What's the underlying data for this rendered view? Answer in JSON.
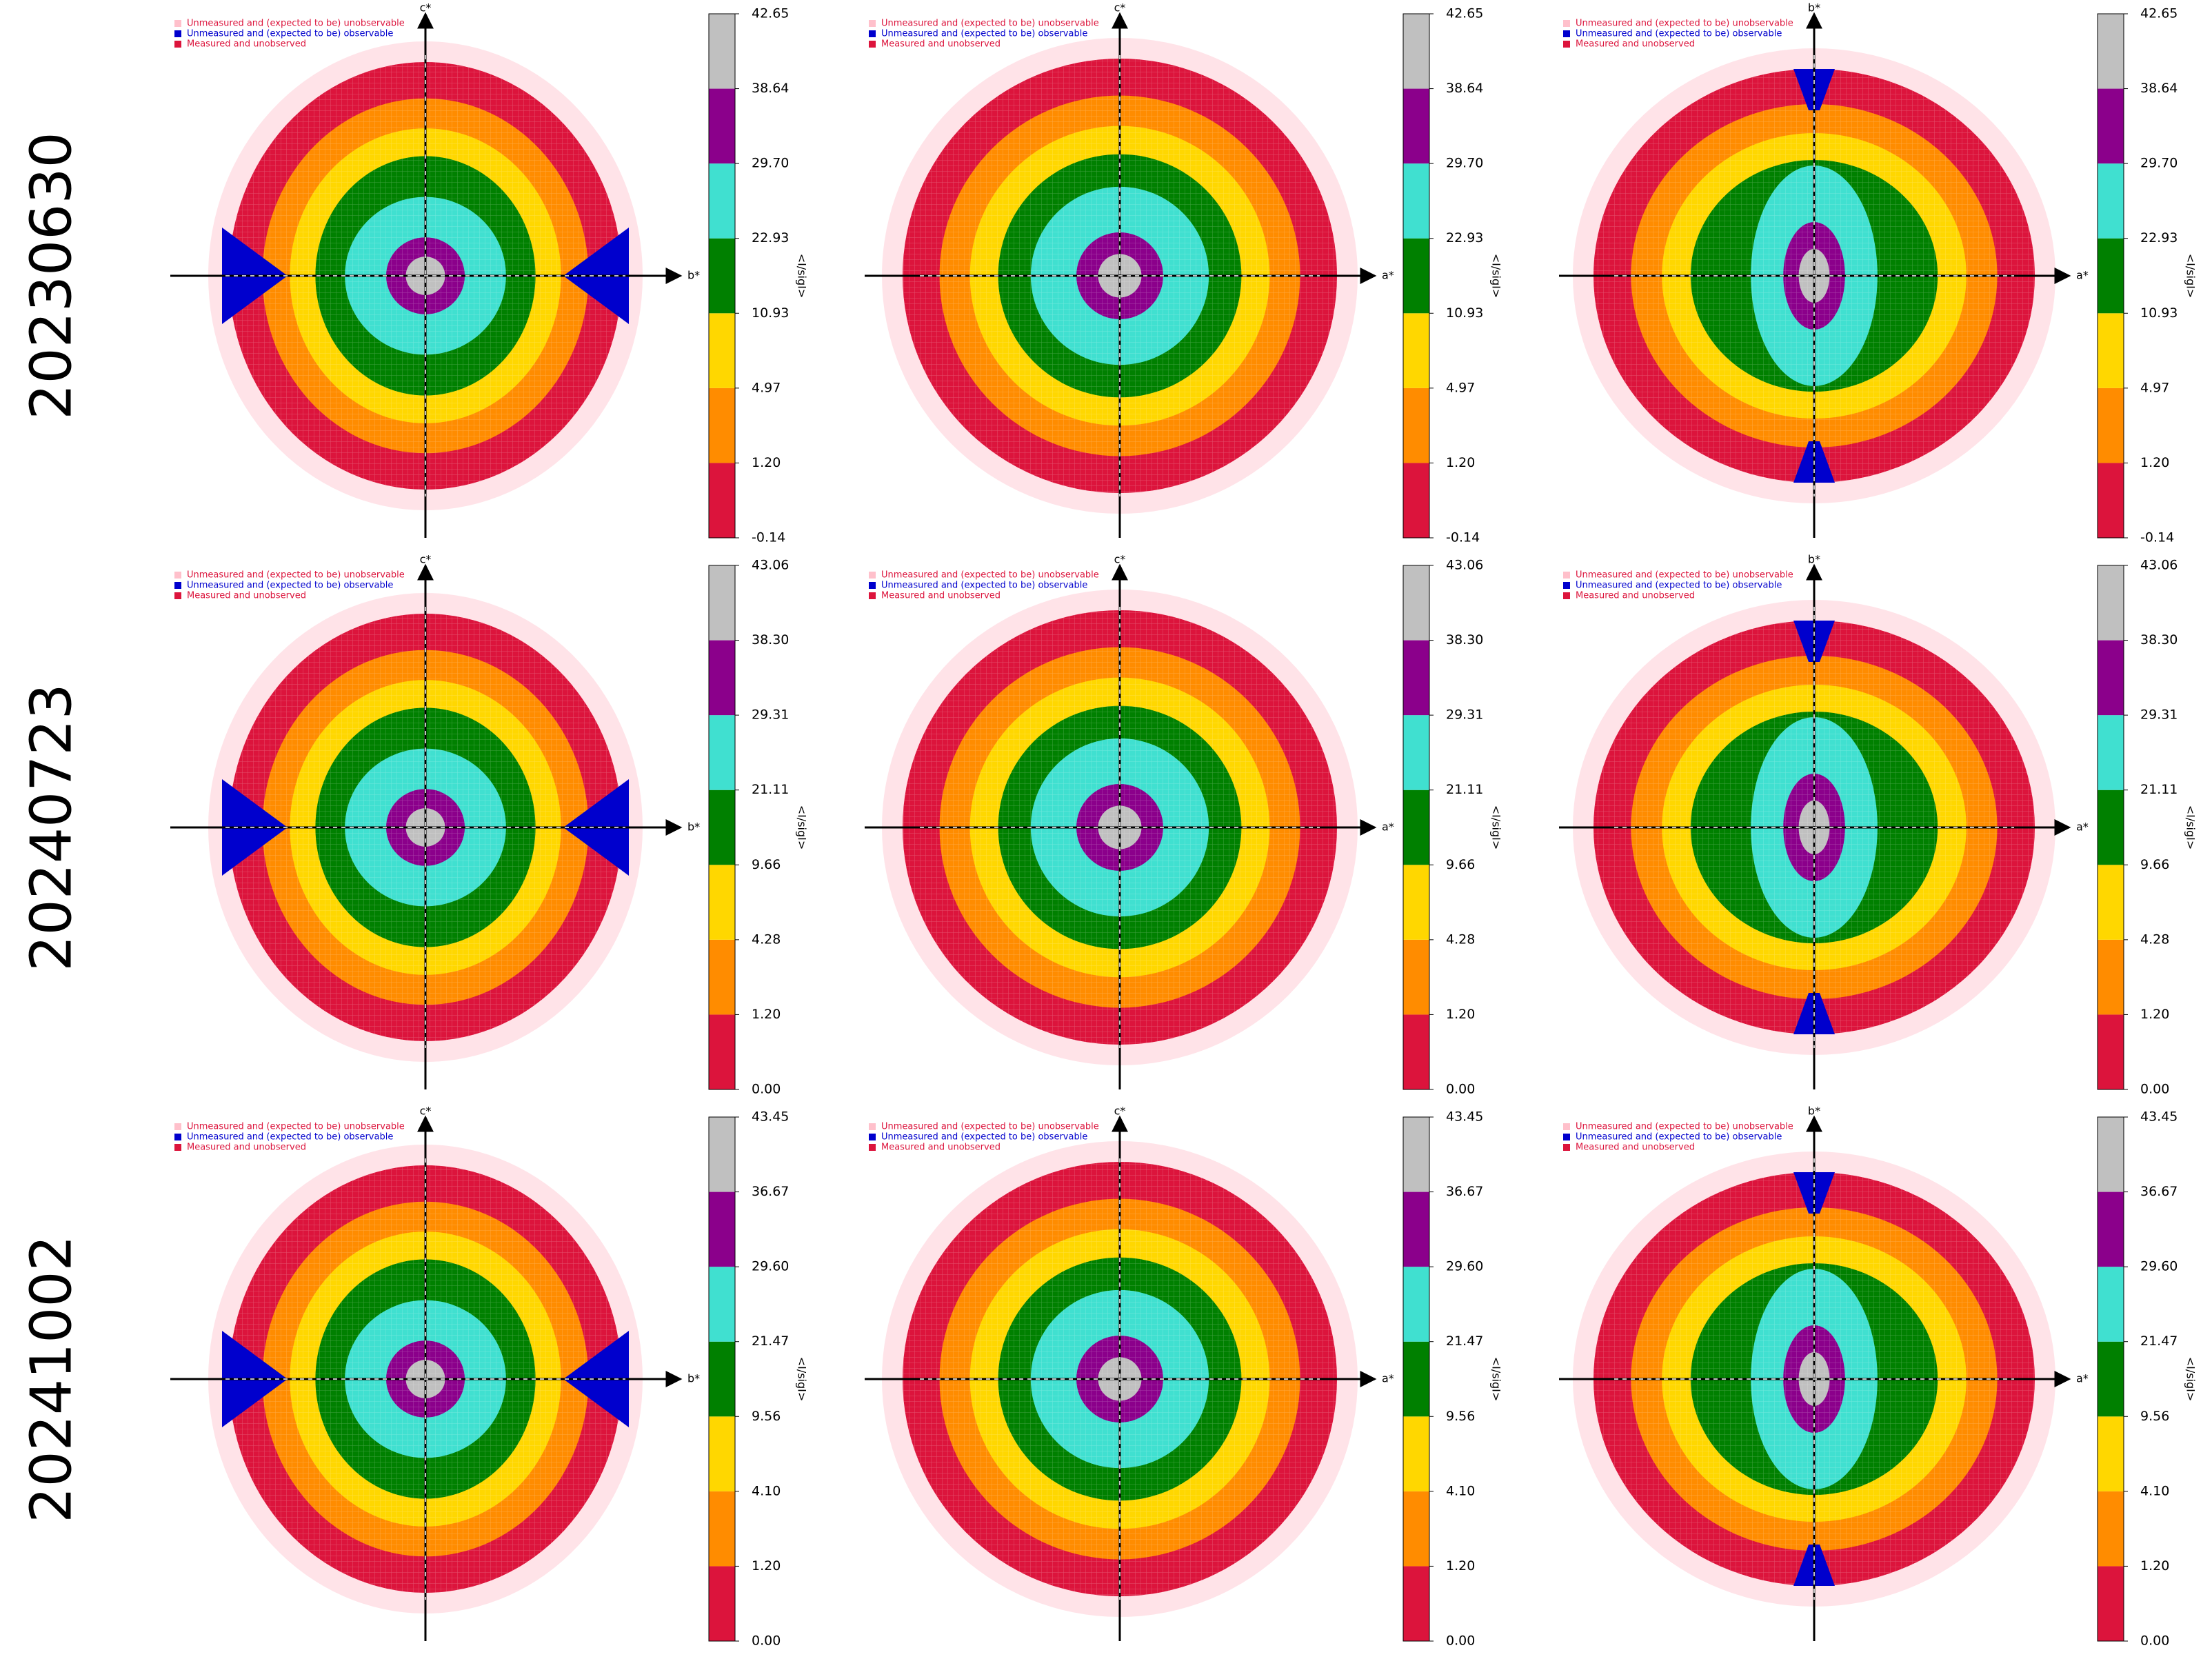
{
  "legend": [
    {
      "label": "Unmeasured and (expected to be) unobservable",
      "color": "#ffc0cb",
      "text_color": "#dc143c"
    },
    {
      "label": "Unmeasured and (expected to be) observable",
      "color": "#0000cd",
      "text_color": "#0000cd"
    },
    {
      "label": "Measured and unobserved",
      "color": "#dc143c",
      "text_color": "#dc143c"
    }
  ],
  "colorbar_label": "<I/sigI>",
  "band_colors": [
    "#dc143c",
    "#ff8c00",
    "#ffd700",
    "#008000",
    "#40e0d0",
    "#8b008b",
    "#c0c0c0"
  ],
  "rows": [
    {
      "label": "20230630",
      "panels": [
        {
          "vertical_axis": "c*",
          "horizontal_axis": "b*",
          "colorbar_ticks": [
            -0.14,
            {
              "value": 1.2,
              "label": "1.20"
            },
            4.97,
            10.93,
            22.93,
            {
              "value": 29.7,
              "label": "29.70"
            },
            38.64,
            42.65
          ]
        },
        {
          "vertical_axis": "c*",
          "horizontal_axis": "a*",
          "colorbar_ticks": [
            -0.14,
            {
              "value": 1.2,
              "label": "1.20"
            },
            4.97,
            10.93,
            22.93,
            {
              "value": 29.7,
              "label": "29.70"
            },
            38.64,
            42.65
          ]
        },
        {
          "vertical_axis": "b*",
          "horizontal_axis": "a*",
          "colorbar_ticks": [
            -0.14,
            {
              "value": 1.2,
              "label": "1.20"
            },
            4.97,
            10.93,
            22.93,
            {
              "value": 29.7,
              "label": "29.70"
            },
            38.64,
            42.65
          ]
        }
      ]
    },
    {
      "label": "20240723",
      "panels": [
        {
          "vertical_axis": "c*",
          "horizontal_axis": "b*",
          "colorbar_ticks": [
            {
              "value": 0,
              "label": "0.00"
            },
            {
              "value": 1.2,
              "label": "1.20"
            },
            4.28,
            9.66,
            21.11,
            29.31,
            {
              "value": 38.3,
              "label": "38.30"
            },
            43.06
          ]
        },
        {
          "vertical_axis": "c*",
          "horizontal_axis": "a*",
          "colorbar_ticks": [
            {
              "value": 0,
              "label": "0.00"
            },
            {
              "value": 1.2,
              "label": "1.20"
            },
            4.28,
            9.66,
            21.11,
            29.31,
            {
              "value": 38.3,
              "label": "38.30"
            },
            43.06
          ]
        },
        {
          "vertical_axis": "b*",
          "horizontal_axis": "a*",
          "colorbar_ticks": [
            {
              "value": 0,
              "label": "0.00"
            },
            {
              "value": 1.2,
              "label": "1.20"
            },
            4.28,
            9.66,
            21.11,
            29.31,
            {
              "value": 38.3,
              "label": "38.30"
            },
            43.06
          ]
        }
      ]
    },
    {
      "label": "20241002",
      "panels": [
        {
          "vertical_axis": "c*",
          "horizontal_axis": "b*",
          "colorbar_ticks": [
            {
              "value": 0,
              "label": "0.00"
            },
            {
              "value": 1.2,
              "label": "1.20"
            },
            {
              "value": 4.1,
              "label": "4.10"
            },
            9.56,
            21.47,
            {
              "value": 29.6,
              "label": "29.60"
            },
            36.67,
            43.45
          ]
        },
        {
          "vertical_axis": "c*",
          "horizontal_axis": "a*",
          "colorbar_ticks": [
            {
              "value": 0,
              "label": "0.00"
            },
            {
              "value": 1.2,
              "label": "1.20"
            },
            {
              "value": 4.1,
              "label": "4.10"
            },
            9.56,
            21.47,
            {
              "value": 29.6,
              "label": "29.60"
            },
            36.67,
            43.45
          ]
        },
        {
          "vertical_axis": "b*",
          "horizontal_axis": "a*",
          "colorbar_ticks": [
            {
              "value": 0,
              "label": "0.00"
            },
            {
              "value": 1.2,
              "label": "1.20"
            },
            {
              "value": 4.1,
              "label": "4.10"
            },
            9.56,
            21.47,
            {
              "value": 29.6,
              "label": "29.60"
            },
            36.67,
            43.45
          ]
        }
      ]
    }
  ]
}
